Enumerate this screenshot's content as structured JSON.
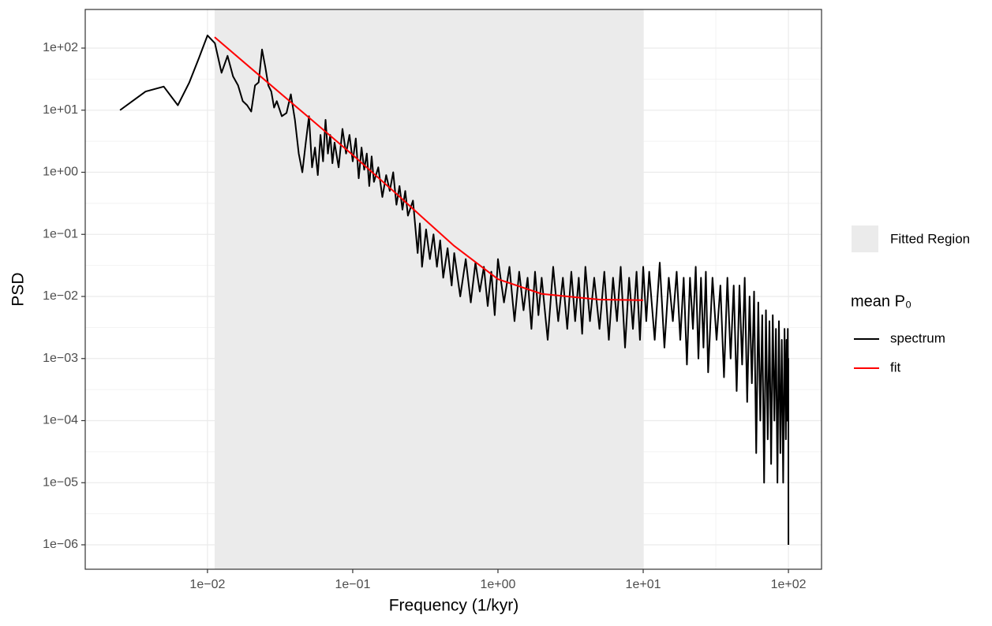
{
  "chart_data": {
    "type": "line",
    "x_label": "Frequency (1/kyr)",
    "y_label": "PSD",
    "log_x": true,
    "log_y": true,
    "grid": true,
    "xlim": [
      0.00144,
      169
    ],
    "ylim": [
      4.04e-07,
      419
    ],
    "xticks": [
      {
        "value": 0.01,
        "label": "1e−02"
      },
      {
        "value": 0.1,
        "label": "1e−01"
      },
      {
        "value": 1,
        "label": "1e+00"
      },
      {
        "value": 10,
        "label": "1e+01"
      },
      {
        "value": 100,
        "label": "1e+02"
      }
    ],
    "yticks": [
      {
        "value": 1e-06,
        "label": "1e−06"
      },
      {
        "value": 1e-05,
        "label": "1e−05"
      },
      {
        "value": 0.0001,
        "label": "1e−04"
      },
      {
        "value": 0.001,
        "label": "1e−03"
      },
      {
        "value": 0.01,
        "label": "1e−02"
      },
      {
        "value": 0.1,
        "label": "1e−01"
      },
      {
        "value": 1,
        "label": "1e+00"
      },
      {
        "value": 10,
        "label": "1e+01"
      },
      {
        "value": 100,
        "label": "1e+02"
      }
    ],
    "fitted_region": {
      "name": "Fitted Region",
      "color": "#ebebeb",
      "x": [
        0.0112,
        10
      ]
    },
    "legend_title": "mean P₀",
    "series": [
      {
        "name": "spectrum",
        "color": "#000000",
        "x": [
          0.0025,
          0.00375,
          0.005,
          0.00625,
          0.0075,
          0.00875,
          0.01,
          0.01125,
          0.0125,
          0.01375,
          0.015,
          0.01625,
          0.0175,
          0.01875,
          0.02,
          0.02125,
          0.0225,
          0.02375,
          0.025,
          0.02625,
          0.0275,
          0.02875,
          0.03,
          0.0325,
          0.035,
          0.0375,
          0.04,
          0.0425,
          0.045,
          0.0475,
          0.05,
          0.0525,
          0.055,
          0.0575,
          0.06,
          0.0625,
          0.065,
          0.0675,
          0.07,
          0.0725,
          0.075,
          0.08,
          0.085,
          0.09,
          0.095,
          0.1,
          0.105,
          0.11,
          0.115,
          0.12,
          0.125,
          0.13,
          0.135,
          0.14,
          0.15,
          0.16,
          0.17,
          0.18,
          0.19,
          0.2,
          0.21,
          0.22,
          0.23,
          0.24,
          0.26,
          0.28,
          0.29,
          0.3,
          0.32,
          0.34,
          0.36,
          0.38,
          0.4,
          0.42,
          0.45,
          0.48,
          0.5,
          0.55,
          0.6,
          0.65,
          0.7,
          0.75,
          0.8,
          0.85,
          0.9,
          0.95,
          1.0,
          1.1,
          1.2,
          1.3,
          1.4,
          1.5,
          1.6,
          1.7,
          1.8,
          1.9,
          2.0,
          2.2,
          2.4,
          2.6,
          2.8,
          3.0,
          3.2,
          3.4,
          3.6,
          3.8,
          4.0,
          4.3,
          4.6,
          5.0,
          5.4,
          5.8,
          6.2,
          6.6,
          7.0,
          7.5,
          8.0,
          8.5,
          9.0,
          9.5,
          10,
          10.5,
          11,
          12,
          13,
          14,
          15,
          16,
          17,
          18,
          19,
          20,
          21,
          22,
          23,
          24,
          25,
          26,
          27,
          28,
          30,
          32,
          34,
          36,
          38,
          40,
          42,
          44,
          46,
          48,
          50,
          52,
          54,
          56,
          58,
          60,
          62,
          64,
          66,
          68,
          70,
          72,
          74,
          76,
          78,
          80,
          82,
          84,
          86,
          88,
          90,
          92,
          94,
          96,
          97,
          98,
          99,
          99.5,
          99.8,
          100
        ],
        "values": [
          10,
          20,
          24,
          12,
          28,
          70,
          160,
          120,
          40,
          75,
          35,
          25,
          14,
          12,
          9.5,
          25,
          28,
          95,
          50,
          25,
          20,
          11,
          14,
          8,
          9,
          18,
          7,
          2,
          1,
          3,
          8,
          1.2,
          2.5,
          0.9,
          4,
          1.5,
          7,
          2,
          4,
          1.4,
          3,
          1.2,
          5,
          2,
          4,
          1.5,
          3.5,
          0.8,
          2.5,
          1.1,
          2,
          0.6,
          1.8,
          0.7,
          1.2,
          0.4,
          0.9,
          0.5,
          1.0,
          0.3,
          0.6,
          0.25,
          0.5,
          0.2,
          0.35,
          0.05,
          0.15,
          0.03,
          0.12,
          0.04,
          0.1,
          0.03,
          0.08,
          0.02,
          0.06,
          0.015,
          0.05,
          0.01,
          0.04,
          0.008,
          0.035,
          0.012,
          0.03,
          0.007,
          0.025,
          0.005,
          0.04,
          0.008,
          0.03,
          0.004,
          0.025,
          0.006,
          0.02,
          0.003,
          0.025,
          0.005,
          0.02,
          0.002,
          0.03,
          0.004,
          0.02,
          0.003,
          0.025,
          0.004,
          0.02,
          0.0025,
          0.03,
          0.004,
          0.02,
          0.003,
          0.025,
          0.002,
          0.02,
          0.004,
          0.03,
          0.0015,
          0.02,
          0.003,
          0.025,
          0.002,
          0.03,
          0.004,
          0.025,
          0.002,
          0.035,
          0.0015,
          0.02,
          0.004,
          0.025,
          0.002,
          0.02,
          0.0008,
          0.02,
          0.003,
          0.03,
          0.001,
          0.02,
          0.0015,
          0.025,
          0.0006,
          0.02,
          0.002,
          0.015,
          0.0005,
          0.02,
          0.001,
          0.015,
          0.0003,
          0.015,
          0.0008,
          0.02,
          0.0002,
          0.01,
          0.0004,
          0.012,
          3e-05,
          0.008,
          0.0001,
          0.005,
          1e-05,
          0.006,
          5e-05,
          0.004,
          2e-05,
          0.005,
          0.0001,
          0.003,
          1e-05,
          0.004,
          3e-05,
          0.002,
          1e-05,
          0.003,
          5e-05,
          0.002,
          0.0001,
          0.003,
          0.0002,
          0.001,
          1e-06
        ]
      },
      {
        "name": "fit",
        "color": "#ff0000",
        "x": [
          0.0112,
          0.02,
          0.05,
          0.1,
          0.2,
          0.3,
          0.5,
          1,
          2,
          5,
          10
        ],
        "values": [
          150,
          47,
          7.6,
          1.9,
          0.45,
          0.19,
          0.065,
          0.019,
          0.011,
          0.0089,
          0.0087
        ]
      }
    ]
  }
}
